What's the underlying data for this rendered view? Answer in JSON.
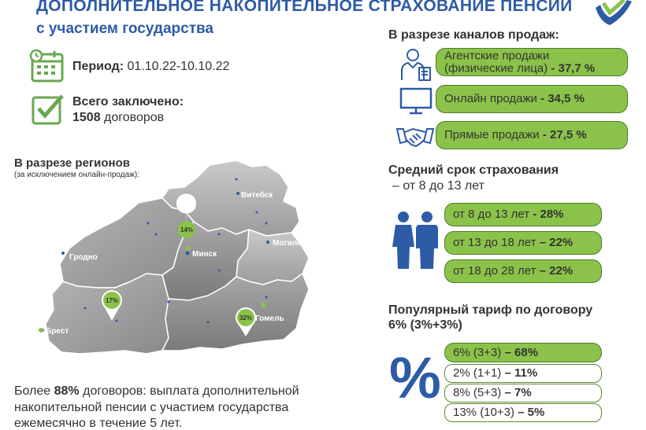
{
  "header": {
    "title": "ДОПОЛНИТЕЛЬНОЕ НАКОПИТЕЛЬНОЕ СТРАХОВАНИЕ ПЕНСИИ",
    "subtitle": "с участием государства"
  },
  "period": {
    "label": "Период:",
    "value": "01.10.22-10.10.22"
  },
  "total": {
    "label": "Всего заключено:",
    "count": "1508",
    "unit": "договоров"
  },
  "regions": {
    "heading": "В разрезе регионов",
    "note": "(за исключением онлайн-продаж):",
    "markers": [
      {
        "region": "Минск",
        "percent": "14%"
      },
      {
        "region": "Брест",
        "percent": "17%"
      },
      {
        "region": "Гомель",
        "percent": "32%"
      }
    ],
    "names": [
      "Витебск",
      "Гродно",
      "Минск",
      "Могилев",
      "Брест",
      "Гомель"
    ]
  },
  "channels": {
    "heading": "В разрезе каналов продаж:",
    "items": [
      {
        "line1": "Агентские продажи",
        "line2": "(физические лица)",
        "value": "- 37,7 %",
        "icon": "agent-icon"
      },
      {
        "line1": "Онлайн продажи",
        "value": "- 34,5 %",
        "icon": "monitor-icon"
      },
      {
        "line1": "Прямые продажи",
        "value": "- 27,5 %",
        "icon": "handshake-icon"
      }
    ]
  },
  "term": {
    "heading": "Средний срок страхования",
    "subheading": "– от 8 до 13 лет",
    "items": [
      {
        "label": "от 8 до 13 лет",
        "value": "- 28%"
      },
      {
        "label": "от 13 до 18 лет",
        "value": "– 22%"
      },
      {
        "label": "от 18 до 28 лет",
        "value": "– 22%"
      }
    ]
  },
  "tariff": {
    "heading1": "Популярный тариф по договору",
    "heading2": "6% (3%+3%)",
    "symbol": "%",
    "items": [
      {
        "label": "6% (3+3)",
        "value": "– 68%"
      },
      {
        "label": "2% (1+1)",
        "value": "– 11%"
      },
      {
        "label": "8% (5+3)",
        "value": "– 7%"
      },
      {
        "label": "13% (10+3)",
        "value": "– 5%"
      }
    ]
  },
  "footer": {
    "pre": "Более ",
    "highlight": "88%",
    "post": " договоров:  выплата дополнительной",
    "line2": "накопительной пенсии с участием государства",
    "line3": "ежемесячно в течение 5 лет."
  },
  "colors": {
    "blue": "#2d5ba6",
    "green": "#8bc34a",
    "darkgreen": "#4e7a2a"
  }
}
